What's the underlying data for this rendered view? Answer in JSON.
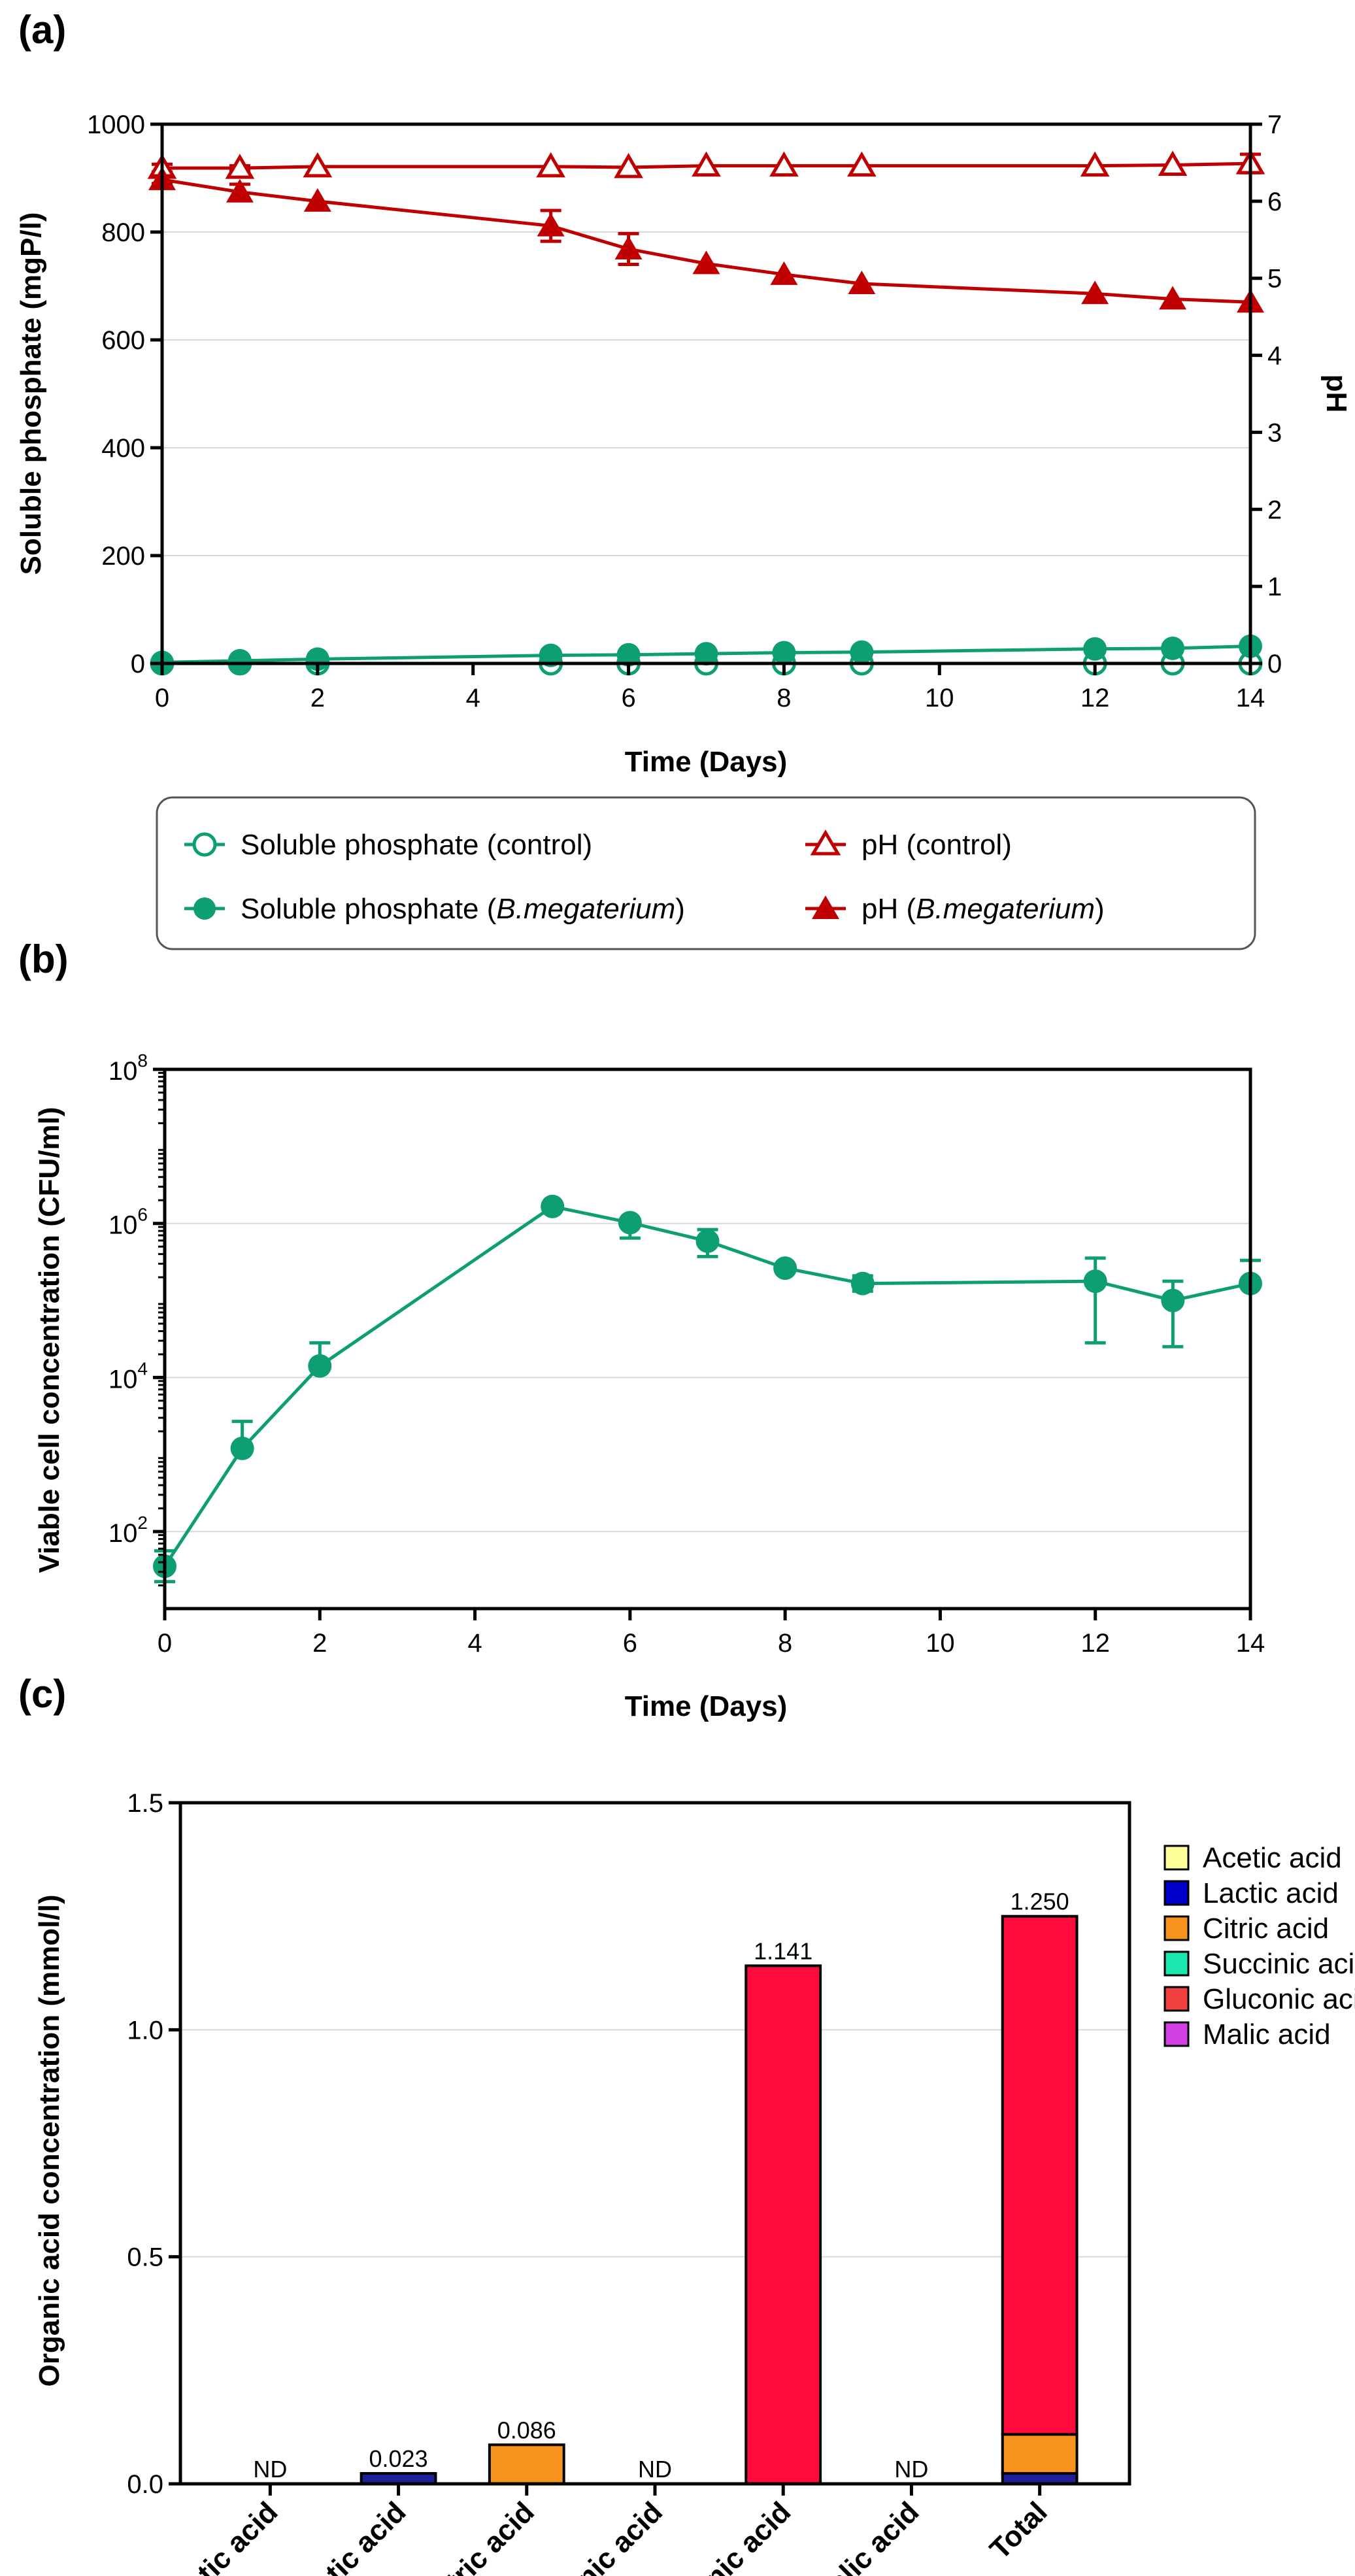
{
  "chart_data": [
    {
      "type": "line",
      "panel_label": "(a)",
      "xlabel": "Time (Days)",
      "ylabel": "Soluble phosphate (mgP/l)",
      "y2label": "pH",
      "xlim": [
        0,
        14
      ],
      "ylim": [
        0,
        1000
      ],
      "y2lim": [
        0,
        7
      ],
      "xticks": [
        "0",
        "2",
        "4",
        "6",
        "8",
        "10",
        "12",
        "14"
      ],
      "yticks": [
        "0",
        "200",
        "400",
        "600",
        "800",
        "1000"
      ],
      "y2ticks": [
        "0",
        "1",
        "2",
        "3",
        "4",
        "5",
        "6",
        "7"
      ],
      "grid": "horizontal",
      "series": [
        {
          "name": "Soluble phosphate (control)",
          "axis": "left",
          "marker": "open-circle",
          "color": "#0E9E73",
          "x": [
            0,
            1,
            2,
            5,
            6,
            7,
            8,
            9,
            12,
            13,
            14
          ],
          "y": [
            0,
            0,
            0,
            0,
            0,
            0,
            0,
            0,
            0,
            0,
            0
          ]
        },
        {
          "name": "Soluble phosphate (B.megaterium)",
          "axis": "left",
          "marker": "filled-circle",
          "color": "#0E9E73",
          "x": [
            0,
            1,
            2,
            5,
            6,
            7,
            8,
            9,
            12,
            13,
            14
          ],
          "y": [
            2,
            5,
            8,
            15,
            16,
            18,
            20,
            21,
            27,
            28,
            32
          ]
        },
        {
          "name": "pH (control)",
          "axis": "right",
          "marker": "open-triangle",
          "color": "#C00000",
          "x": [
            0,
            1,
            2,
            5,
            6,
            7,
            8,
            9,
            12,
            13,
            14
          ],
          "y": [
            6.43,
            6.43,
            6.45,
            6.45,
            6.44,
            6.46,
            6.46,
            6.46,
            6.46,
            6.47,
            6.49
          ],
          "err": [
            0.05,
            0.03,
            0,
            0,
            0,
            0,
            0,
            0,
            0,
            0,
            0.12
          ]
        },
        {
          "name": "pH (B.megaterium)",
          "axis": "right",
          "marker": "filled-triangle",
          "color": "#C00000",
          "x": [
            0,
            1,
            2,
            5,
            6,
            7,
            8,
            9,
            12,
            13,
            14
          ],
          "y": [
            6.28,
            6.12,
            6.0,
            5.68,
            5.38,
            5.19,
            5.05,
            4.93,
            4.8,
            4.73,
            4.69
          ],
          "err": [
            0.05,
            0.1,
            0,
            0.2,
            0.2,
            0,
            0,
            0,
            0,
            0,
            0
          ]
        }
      ]
    },
    {
      "type": "line",
      "panel_label": "(b)",
      "xlabel": "Time (Days)",
      "ylabel": "Viable cell concentration (CFU/ml)",
      "yscale": "log",
      "xlim": [
        0,
        14
      ],
      "ylim": [
        10,
        100000000
      ],
      "xticks": [
        "0",
        "2",
        "4",
        "6",
        "8",
        "10",
        "12",
        "14"
      ],
      "yticks": [
        {
          "base": "10",
          "exp": "2",
          "value": 2
        },
        {
          "base": "10",
          "exp": "4",
          "value": 4
        },
        {
          "base": "10",
          "exp": "6",
          "value": 6
        },
        {
          "base": "10",
          "exp": "8",
          "value": 8
        }
      ],
      "grid": "horizontal",
      "series": [
        {
          "name": "B.megaterium",
          "color": "#0E9E73",
          "marker": "filled-circle",
          "x": [
            0,
            1,
            2,
            5,
            6,
            7,
            8,
            9,
            12,
            13,
            14
          ],
          "log10_y": [
            1.55,
            3.08,
            4.15,
            6.22,
            6.01,
            5.77,
            5.42,
            5.22,
            5.25,
            5.0,
            5.22
          ],
          "log10_err_up": [
            0.2,
            0.35,
            0.3,
            0,
            0.0,
            0.15,
            0,
            0.1,
            0.3,
            0.25,
            0.3
          ],
          "log10_err_down": [
            0.2,
            0,
            0,
            0,
            0.2,
            0.2,
            0,
            0.1,
            0.8,
            0.6,
            0
          ]
        }
      ]
    },
    {
      "type": "bar",
      "stacked_total": true,
      "panel_label": "(c)",
      "ylabel": "Organic acid concentration (mmol/l)",
      "ylim": [
        0,
        1.5
      ],
      "yticks": [
        "0.0",
        "0.5",
        "1.0",
        "1.5"
      ],
      "grid": "horizontal",
      "categories": [
        "Acetic acid",
        "Lactic acid",
        "Citric acid",
        "Succinic acid",
        "Gluconic acid",
        "Malic acid",
        "Total"
      ],
      "values": [
        0,
        0.023,
        0.086,
        0,
        1.141,
        0,
        1.25
      ],
      "value_labels": [
        "ND",
        "0.023",
        "0.086",
        "ND",
        "1.141",
        "ND",
        "1.250"
      ],
      "bar_colors": [
        "#FFFF99",
        "#1F1F9A",
        "#F7931E",
        "#1ABC9C",
        "#FF0A3C",
        "#CC33CC",
        "#FF0A3C"
      ],
      "total_stack": [
        {
          "name": "Lactic acid",
          "value": 0.023,
          "color": "#1F1F9A"
        },
        {
          "name": "Citric acid",
          "value": 0.086,
          "color": "#F7931E"
        },
        {
          "name": "Gluconic acid",
          "value": 1.141,
          "color": "#FF0A3C"
        }
      ],
      "legend": [
        {
          "label": "Acetic acid",
          "color": "#FFFF99"
        },
        {
          "label": "Lactic acid",
          "color": "#0000CC"
        },
        {
          "label": "Citric acid",
          "color": "#F7931E"
        },
        {
          "label": "Succinic acid",
          "color": "#1AE6B0"
        },
        {
          "label": "Gluconic acid",
          "color": "#F04040"
        },
        {
          "label": "Malic acid",
          "color": "#D040E0"
        }
      ]
    }
  ],
  "legend_a": {
    "items": [
      {
        "id": "sp-control",
        "pre": "Soluble phosphate (control)",
        "ital": "",
        "post": ""
      },
      {
        "id": "ph-control",
        "pre": "pH (control)",
        "ital": "",
        "post": ""
      },
      {
        "id": "sp-bm",
        "pre": "Soluble phosphate (",
        "ital": "B.megaterium",
        "post": ")"
      },
      {
        "id": "ph-bm",
        "pre": "pH (",
        "ital": "B.megaterium",
        "post": ")"
      }
    ]
  }
}
